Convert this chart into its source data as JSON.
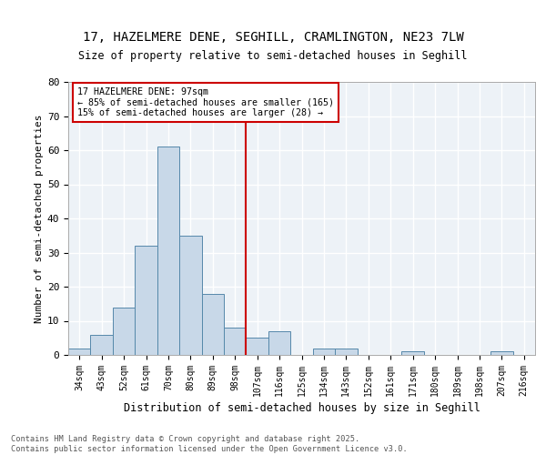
{
  "title1": "17, HAZELMERE DENE, SEGHILL, CRAMLINGTON, NE23 7LW",
  "title2": "Size of property relative to semi-detached houses in Seghill",
  "xlabel": "Distribution of semi-detached houses by size in Seghill",
  "ylabel": "Number of semi-detached properties",
  "bin_labels": [
    "34sqm",
    "43sqm",
    "52sqm",
    "61sqm",
    "70sqm",
    "80sqm",
    "89sqm",
    "98sqm",
    "107sqm",
    "116sqm",
    "125sqm",
    "134sqm",
    "143sqm",
    "152sqm",
    "161sqm",
    "171sqm",
    "180sqm",
    "189sqm",
    "198sqm",
    "207sqm",
    "216sqm"
  ],
  "bin_counts": [
    2,
    6,
    14,
    32,
    61,
    35,
    18,
    8,
    5,
    7,
    0,
    2,
    2,
    0,
    0,
    1,
    0,
    0,
    0,
    1,
    0
  ],
  "bar_color": "#c8d8e8",
  "bar_edge_color": "#5588aa",
  "vline_color": "#cc0000",
  "annotation_title": "17 HAZELMERE DENE: 97sqm",
  "annotation_line2": "← 85% of semi-detached houses are smaller (165)",
  "annotation_line3": "15% of semi-detached houses are larger (28) →",
  "annotation_box_color": "#cc0000",
  "ylim": [
    0,
    80
  ],
  "yticks": [
    0,
    10,
    20,
    30,
    40,
    50,
    60,
    70,
    80
  ],
  "footer_line1": "Contains HM Land Registry data © Crown copyright and database right 2025.",
  "footer_line2": "Contains public sector information licensed under the Open Government Licence v3.0.",
  "bg_color": "#edf2f7",
  "grid_color": "#ffffff"
}
